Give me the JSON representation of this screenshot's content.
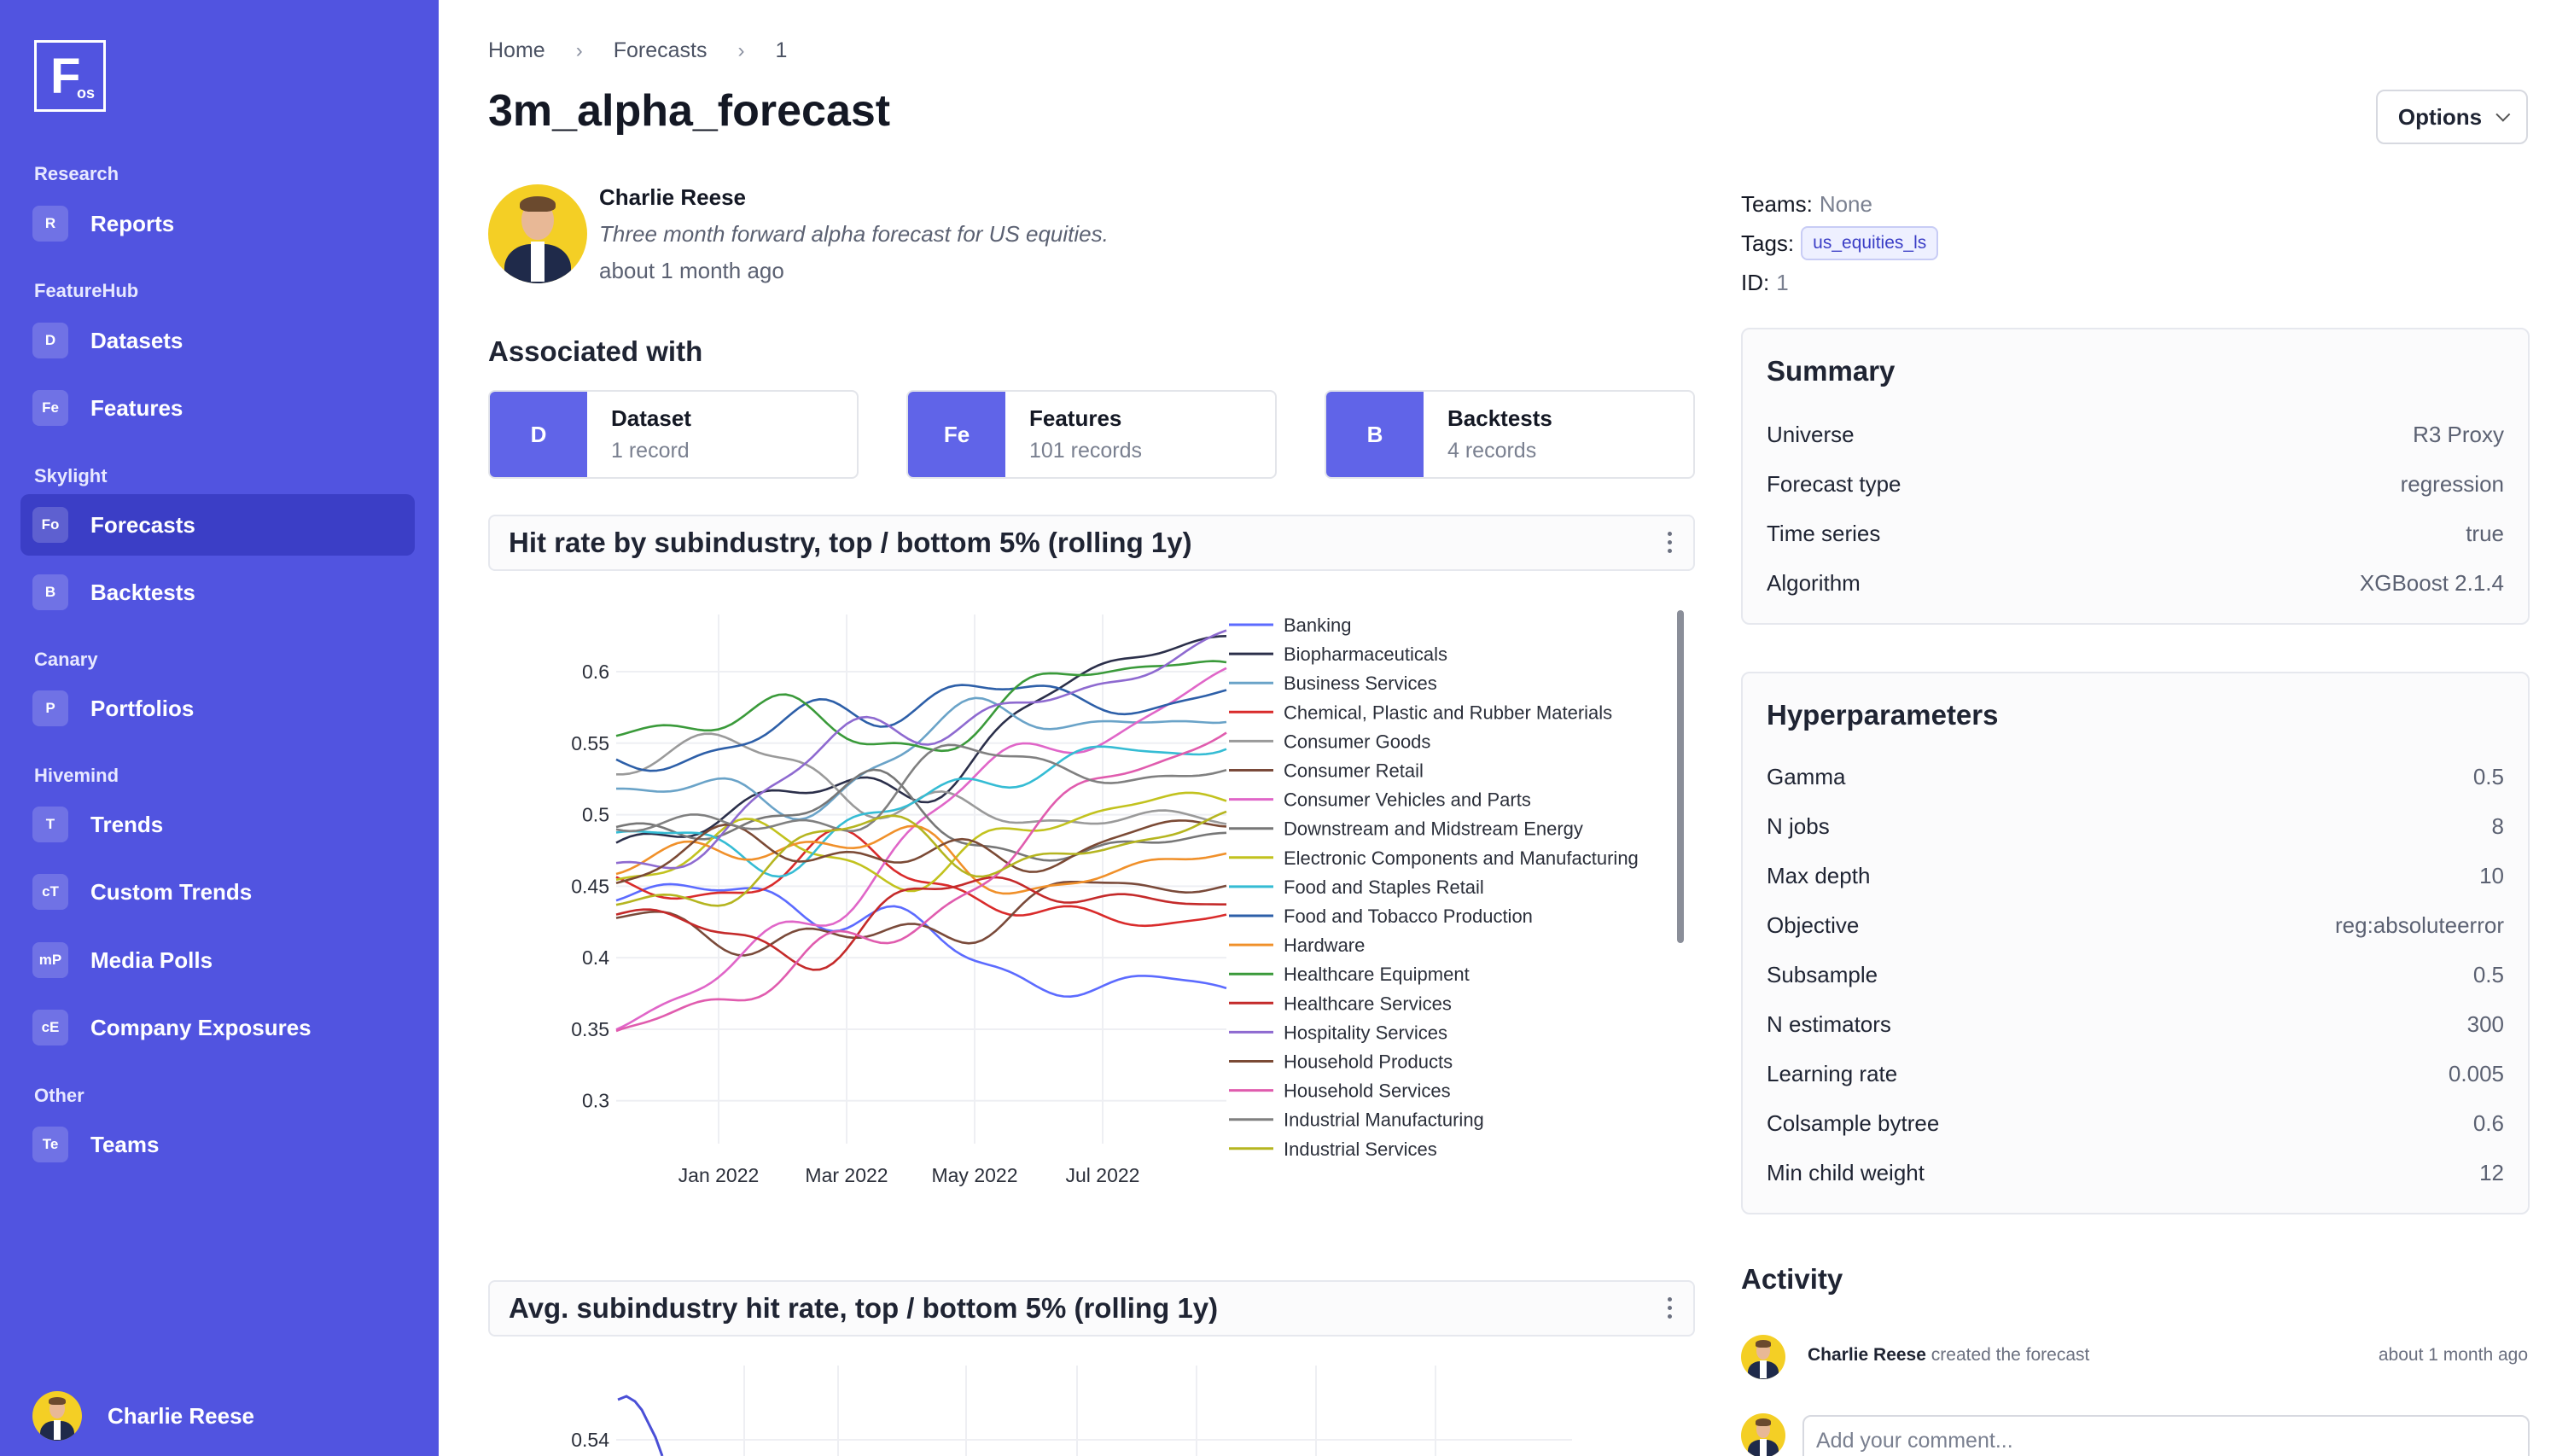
{
  "sidebar": {
    "logo": {
      "letter": "F",
      "sub": "os"
    },
    "sections": [
      {
        "label": "Research",
        "items": [
          {
            "abbr": "R",
            "label": "Reports"
          }
        ]
      },
      {
        "label": "FeatureHub",
        "items": [
          {
            "abbr": "D",
            "label": "Datasets"
          },
          {
            "abbr": "Fe",
            "label": "Features"
          }
        ]
      },
      {
        "label": "Skylight",
        "items": [
          {
            "abbr": "Fo",
            "label": "Forecasts",
            "active": true
          },
          {
            "abbr": "B",
            "label": "Backtests"
          }
        ]
      },
      {
        "label": "Canary",
        "items": [
          {
            "abbr": "P",
            "label": "Portfolios"
          }
        ]
      },
      {
        "label": "Hivemind",
        "items": [
          {
            "abbr": "T",
            "label": "Trends"
          },
          {
            "abbr": "cT",
            "label": "Custom Trends"
          },
          {
            "abbr": "mP",
            "label": "Media Polls"
          },
          {
            "abbr": "cE",
            "label": "Company Exposures"
          }
        ]
      },
      {
        "label": "Other",
        "items": [
          {
            "abbr": "Te",
            "label": "Teams"
          }
        ]
      }
    ],
    "user_name": "Charlie Reese"
  },
  "breadcrumb": {
    "home": "Home",
    "section": "Forecasts",
    "current": "1",
    "separator": "›"
  },
  "title": "3m_alpha_forecast",
  "options_label": "Options",
  "owner": {
    "name": "Charlie Reese",
    "description": "Three month forward alpha forecast for US equities.",
    "time": "about 1 month ago"
  },
  "meta": {
    "teams_label": "Teams:",
    "teams_value": "None",
    "tags_label": "Tags:",
    "tag": "us_equities_ls",
    "id_label": "ID:",
    "id_value": "1"
  },
  "associated": {
    "title": "Associated with",
    "items": [
      {
        "abbr": "D",
        "label": "Dataset",
        "count": "1 record"
      },
      {
        "abbr": "Fe",
        "label": "Features",
        "count": "101 records"
      },
      {
        "abbr": "B",
        "label": "Backtests",
        "count": "4 records"
      }
    ]
  },
  "chart1_title": "Hit rate by subindustry, top / bottom 5% (rolling 1y)",
  "chart2_title": "Avg. subindustry hit rate, top / bottom 5% (rolling 1y)",
  "chart_data": [
    {
      "type": "line",
      "x_ticks": [
        "Jan 2022",
        "Mar 2022",
        "May 2022",
        "Jul 2022"
      ],
      "y_ticks": [
        "0.6",
        "0.55",
        "0.5",
        "0.45",
        "0.4",
        "0.35",
        "0.3"
      ],
      "ylim": [
        0.27,
        0.64
      ],
      "grid": true,
      "legend_placement": "right",
      "series": [
        {
          "name": "Banking",
          "color": "#5c6bff",
          "start": 0.44,
          "end": 0.38
        },
        {
          "name": "Biopharmaceuticals",
          "color": "#2b2f4a",
          "start": 0.47,
          "end": 0.63
        },
        {
          "name": "Business Services",
          "color": "#6aa3c8",
          "start": 0.52,
          "end": 0.57
        },
        {
          "name": "Chemical, Plastic and Rubber Materials",
          "color": "#d92b2b",
          "start": 0.46,
          "end": 0.42
        },
        {
          "name": "Consumer Goods",
          "color": "#9a9a9a",
          "start": 0.53,
          "end": 0.5
        },
        {
          "name": "Consumer Retail",
          "color": "#7a4a3a",
          "start": 0.42,
          "end": 0.45
        },
        {
          "name": "Consumer Vehicles and Parts",
          "color": "#e066c8",
          "start": 0.36,
          "end": 0.6
        },
        {
          "name": "Downstream and Midstream Energy",
          "color": "#777777",
          "start": 0.49,
          "end": 0.48
        },
        {
          "name": "Electronic Components and Manufacturing",
          "color": "#c2c21e",
          "start": 0.45,
          "end": 0.52
        },
        {
          "name": "Food and Staples Retail",
          "color": "#35bcd4",
          "start": 0.48,
          "end": 0.55
        },
        {
          "name": "Food and Tobacco Production",
          "color": "#2d5fa8",
          "start": 0.55,
          "end": 0.58
        },
        {
          "name": "Hardware",
          "color": "#f0902a",
          "start": 0.46,
          "end": 0.47
        },
        {
          "name": "Healthcare Equipment",
          "color": "#3a9a3a",
          "start": 0.55,
          "end": 0.61
        },
        {
          "name": "Healthcare Services",
          "color": "#c42a2a",
          "start": 0.43,
          "end": 0.44
        },
        {
          "name": "Hospitality Services",
          "color": "#8e6ad0",
          "start": 0.47,
          "end": 0.62
        },
        {
          "name": "Household Products",
          "color": "#7b4a35",
          "start": 0.45,
          "end": 0.5
        },
        {
          "name": "Household Services",
          "color": "#e05cae",
          "start": 0.34,
          "end": 0.56
        },
        {
          "name": "Industrial Manufacturing",
          "color": "#808080",
          "start": 0.5,
          "end": 0.53
        },
        {
          "name": "Industrial Services",
          "color": "#b5b520",
          "start": 0.44,
          "end": 0.49
        }
      ]
    },
    {
      "type": "line",
      "y_ticks": [
        "0.54"
      ],
      "series": [
        {
          "color": "#4a4fd6"
        }
      ]
    }
  ],
  "summary": {
    "title": "Summary",
    "rows": [
      {
        "k": "Universe",
        "v": "R3 Proxy"
      },
      {
        "k": "Forecast type",
        "v": "regression"
      },
      {
        "k": "Time series",
        "v": "true"
      },
      {
        "k": "Algorithm",
        "v": "XGBoost 2.1.4"
      }
    ]
  },
  "hyperparameters": {
    "title": "Hyperparameters",
    "rows": [
      {
        "k": "Gamma",
        "v": "0.5"
      },
      {
        "k": "N jobs",
        "v": "8"
      },
      {
        "k": "Max depth",
        "v": "10"
      },
      {
        "k": "Objective",
        "v": "reg:absoluteerror"
      },
      {
        "k": "Subsample",
        "v": "0.5"
      },
      {
        "k": "N estimators",
        "v": "300"
      },
      {
        "k": "Learning rate",
        "v": "0.005"
      },
      {
        "k": "Colsample bytree",
        "v": "0.6"
      },
      {
        "k": "Min child weight",
        "v": "12"
      }
    ]
  },
  "activity": {
    "title": "Activity",
    "entry_user": "Charlie Reese",
    "entry_action": "created the forecast",
    "entry_time": "about 1 month ago",
    "comment_placeholder": "Add your comment..."
  }
}
